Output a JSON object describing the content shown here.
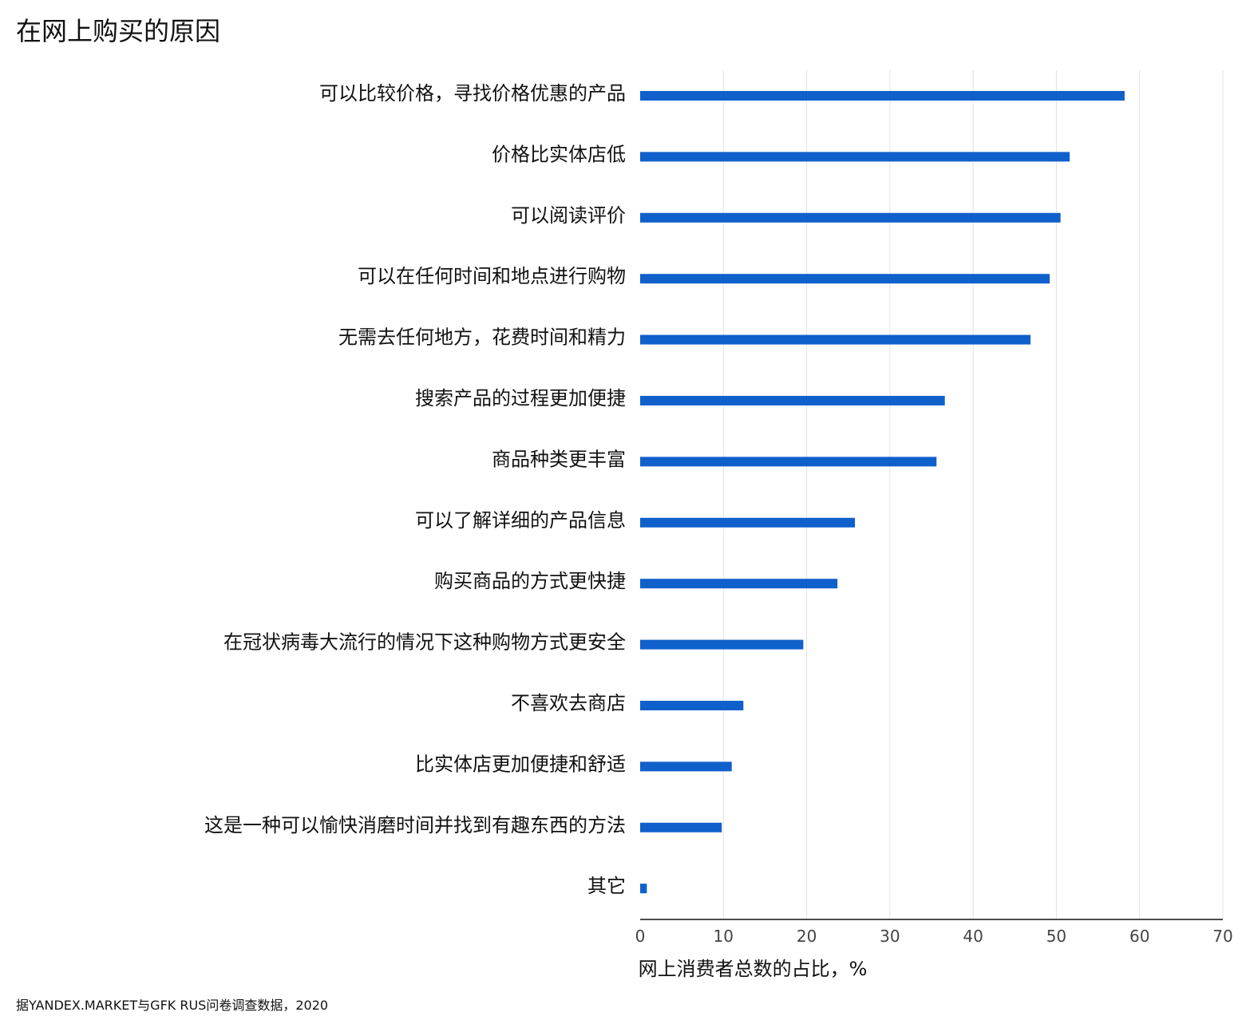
{
  "title": "在网上购买的原因",
  "source": "据YANDEX.MARKET与GFK RUS问卷调查数据，2020",
  "chart_data": {
    "type": "bar",
    "orientation": "horizontal",
    "title": "在网上购买的原因",
    "xlabel": "网上消费者总数的占比，%",
    "ylabel": "",
    "xlim": [
      0,
      70
    ],
    "xticks": [
      0,
      10,
      20,
      30,
      40,
      50,
      60,
      70
    ],
    "grid": true,
    "bar_color": "#1060cc",
    "categories": [
      "可以比较价格，寻找价格优惠的产品",
      "价格比实体店低",
      "可以阅读评价",
      "可以在任何时间和地点进行购物",
      "无需去任何地方，花费时间和精力",
      "搜索产品的过程更加便捷",
      "商品种类更丰富",
      "可以了解详细的产品信息",
      "购买商品的方式更快捷",
      "在冠状病毒大流行的情况下这种购物方式更安全",
      "不喜欢去商店",
      "比实体店更加便捷和舒适",
      "这是一种可以愉快消磨时间并找到有趣东西的方法",
      "其它"
    ],
    "values": [
      58.2,
      51.6,
      50.5,
      49.2,
      46.9,
      36.6,
      35.6,
      25.8,
      23.7,
      19.6,
      12.4,
      11.0,
      9.8,
      0.8
    ]
  }
}
